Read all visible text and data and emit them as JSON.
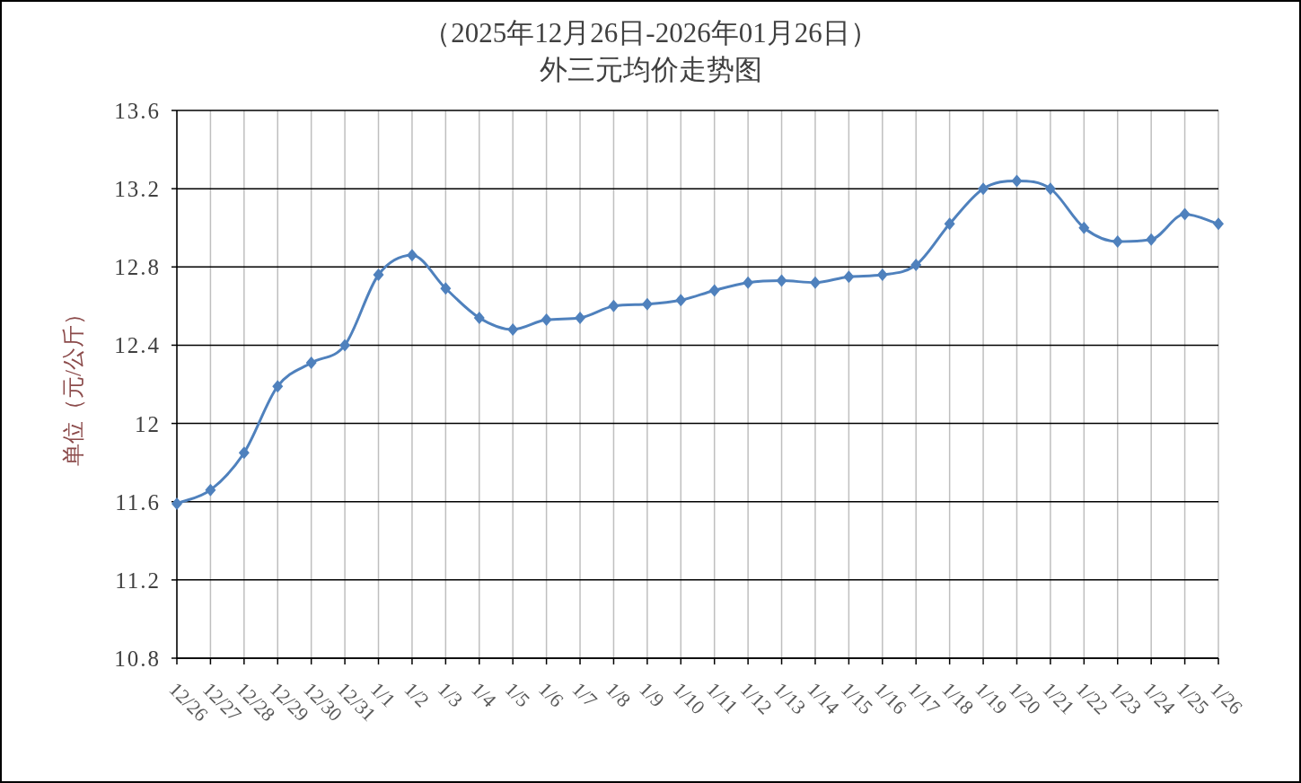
{
  "chart_data": {
    "type": "line",
    "title": "（2025年12月26日-2026年01月26日）",
    "subtitle": "外三元均价走势图",
    "ylabel": "单位（元/公斤）",
    "categories": [
      "12/26",
      "12/27",
      "12/28",
      "12/29",
      "12/30",
      "12/31",
      "1/1",
      "1/2",
      "1/3",
      "1/4",
      "1/5",
      "1/6",
      "1/7",
      "1/8",
      "1/9",
      "1/10",
      "1/11",
      "1/12",
      "1/13",
      "1/14",
      "1/15",
      "1/16",
      "1/17",
      "1/18",
      "1/19",
      "1/20",
      "1/21",
      "1/22",
      "1/23",
      "1/24",
      "1/25",
      "1/26"
    ],
    "series": [
      {
        "color": "#4f81bd",
        "values": [
          11.59,
          11.66,
          11.85,
          12.19,
          12.31,
          12.4,
          12.76,
          12.86,
          12.69,
          12.54,
          12.48,
          12.53,
          12.54,
          12.6,
          12.61,
          12.63,
          12.68,
          12.72,
          12.73,
          12.72,
          12.75,
          12.76,
          12.81,
          13.02,
          13.2,
          13.24,
          13.2,
          13.0,
          12.93,
          12.94,
          13.07,
          13.02
        ]
      }
    ],
    "ylim": [
      10.8,
      13.6
    ],
    "yticks": [
      10.8,
      11.2,
      11.6,
      12,
      12.4,
      12.8,
      13.2,
      13.6
    ],
    "grid": true,
    "marker": "diamond",
    "line_style": "solid"
  }
}
